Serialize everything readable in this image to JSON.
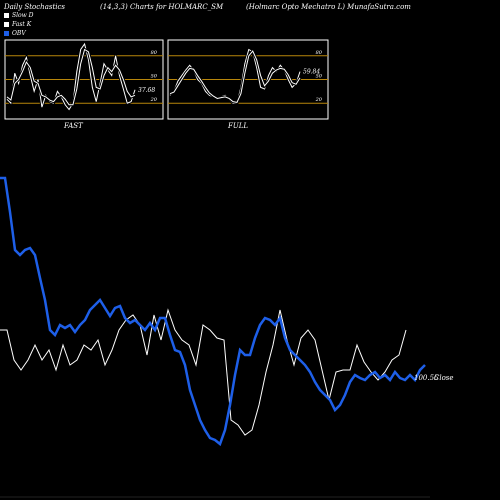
{
  "header": {
    "left": "Daily Stochastics",
    "middle": "(14,3,3) Charts for HOLMARC_SM",
    "right": "(Holmarc Opto  Mechatro  L) MunafaSutra.com"
  },
  "legend": [
    {
      "label": "Slow  D",
      "color": "#ffffff"
    },
    {
      "label": "Fast K",
      "color": "#ffffff"
    },
    {
      "label": "OBV",
      "color": "#1e5fe8"
    }
  ],
  "colors": {
    "obv": "#1e5fe8",
    "price": "#ffffff",
    "band": "#b8860b",
    "panel_border": "#ffffff"
  },
  "chart_data": [
    {
      "type": "line",
      "title": "FAST",
      "ylim": [
        0,
        100
      ],
      "ticks": [
        20,
        50,
        80
      ],
      "last_label": "37.68",
      "series": [
        {
          "name": "Fast K",
          "values": [
            25,
            20,
            58,
            45,
            68,
            78,
            55,
            35,
            50,
            15,
            30,
            22,
            20,
            35,
            28,
            18,
            12,
            20,
            60,
            88,
            95,
            75,
            40,
            22,
            45,
            70,
            62,
            55,
            80,
            55,
            38,
            20,
            22,
            37
          ]
        },
        {
          "name": "Slow  D",
          "values": [
            28,
            24,
            45,
            50,
            60,
            72,
            65,
            48,
            45,
            30,
            28,
            24,
            22,
            28,
            30,
            25,
            18,
            18,
            38,
            70,
            88,
            85,
            65,
            40,
            38,
            55,
            65,
            60,
            68,
            62,
            50,
            35,
            28,
            30
          ]
        }
      ]
    },
    {
      "type": "line",
      "title": "FULL",
      "ylim": [
        0,
        100
      ],
      "ticks": [
        20,
        50,
        80
      ],
      "last_label": "59.84",
      "series": [
        {
          "name": "Full K",
          "values": [
            30,
            35,
            48,
            55,
            62,
            68,
            62,
            50,
            45,
            35,
            30,
            28,
            25,
            28,
            30,
            25,
            20,
            20,
            40,
            70,
            88,
            85,
            65,
            40,
            38,
            55,
            65,
            60,
            68,
            62,
            50,
            40,
            45,
            60
          ]
        },
        {
          "name": "Full D",
          "values": [
            32,
            34,
            42,
            50,
            58,
            64,
            63,
            55,
            48,
            40,
            33,
            29,
            26,
            27,
            28,
            26,
            22,
            21,
            32,
            58,
            80,
            86,
            75,
            55,
            42,
            48,
            58,
            62,
            64,
            63,
            56,
            46,
            44,
            52
          ]
        }
      ]
    },
    {
      "type": "line",
      "series": [
        {
          "name": "OBV",
          "values": [
            178,
            178,
            212,
            250,
            255,
            250,
            248,
            255,
            278,
            300,
            330,
            335,
            325,
            328,
            325,
            332,
            325,
            320,
            310,
            305,
            300,
            308,
            316,
            308,
            306,
            318,
            323,
            320,
            325,
            330,
            323,
            330,
            318,
            318,
            335,
            350,
            352,
            365,
            390,
            405,
            420,
            430,
            438,
            440,
            444,
            430,
            405,
            375,
            350,
            355,
            355,
            338,
            325,
            318,
            320,
            325,
            318,
            338,
            350,
            355,
            360,
            365,
            372,
            382,
            390,
            395,
            400,
            410,
            405,
            395,
            382,
            375,
            378,
            380,
            375,
            372,
            378,
            375,
            380,
            372,
            378,
            380,
            375,
            380,
            370,
            365
          ]
        },
        {
          "name": "Close",
          "values": [
            330,
            330,
            360,
            370,
            360,
            345,
            360,
            350,
            370,
            345,
            365,
            360,
            345,
            350,
            340,
            365,
            350,
            330,
            320,
            315,
            325,
            355,
            315,
            340,
            310,
            330,
            340,
            345,
            365,
            325,
            330,
            338,
            340,
            420,
            425,
            435,
            430,
            405,
            372,
            345,
            310,
            340,
            365,
            338,
            330,
            340,
            370,
            400,
            372,
            370,
            370,
            345,
            362,
            372,
            380,
            372,
            360,
            355,
            330
          ]
        }
      ],
      "last_label": "100.55",
      "last_label_suffix": "Close"
    }
  ]
}
